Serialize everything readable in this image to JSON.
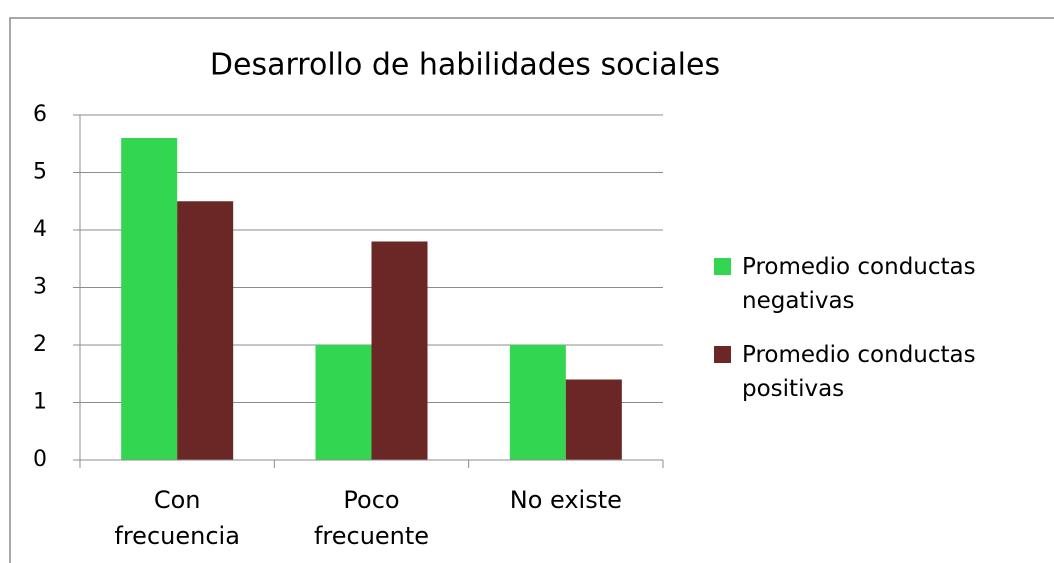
{
  "chart_data": {
    "type": "bar",
    "title": "Desarrollo de habilidades sociales",
    "categories": [
      "Con frecuencia",
      "Poco frecuente",
      "No existe"
    ],
    "series": [
      {
        "name": "Promedio conductas negativas",
        "color": "#33d651",
        "values": [
          5.6,
          2,
          2
        ]
      },
      {
        "name": "Promedio conductas positivas",
        "color": "#6b2626",
        "values": [
          4.5,
          3.8,
          1.4
        ]
      }
    ],
    "ylim": [
      0,
      6
    ],
    "yticks": [
      0,
      1,
      2,
      3,
      4,
      5,
      6
    ],
    "grid": true,
    "legend": "right"
  }
}
